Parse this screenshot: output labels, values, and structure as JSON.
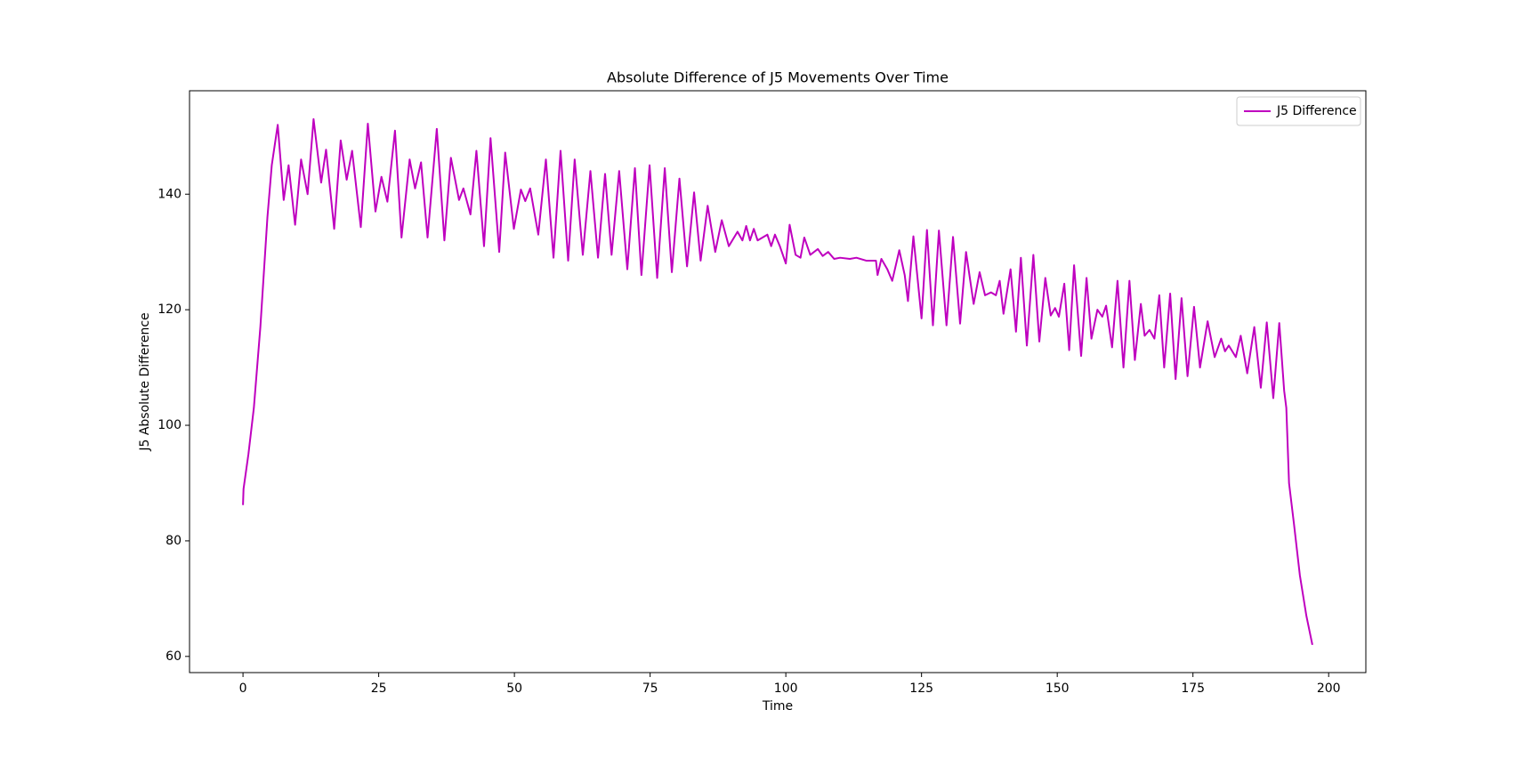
{
  "chart_data": {
    "type": "line",
    "title": "Absolute Difference of J5 Movements Over Time",
    "xlabel": "Time",
    "ylabel": "J5 Absolute Difference",
    "x": [
      0,
      0.1,
      1,
      2,
      3.2,
      4.5,
      5.3,
      6.4,
      7.5,
      8.4,
      9.6,
      10.7,
      11.9,
      13.0,
      14.4,
      15.3,
      16.8,
      18.0,
      19.1,
      20.1,
      21.7,
      23.0,
      24.4,
      25.5,
      26.6,
      28.0,
      29.2,
      30.7,
      31.7,
      32.8,
      34.0,
      35.7,
      37.1,
      38.3,
      39.8,
      40.6,
      41.9,
      43.0,
      44.4,
      45.6,
      47.2,
      48.3,
      49.9,
      51.2,
      52.0,
      52.9,
      54.4,
      55.8,
      57.2,
      58.5,
      59.9,
      61.1,
      62.6,
      64.0,
      65.4,
      66.7,
      67.9,
      69.3,
      70.8,
      72.2,
      73.4,
      74.9,
      76.3,
      77.7,
      79.0,
      80.4,
      81.8,
      83.1,
      84.3,
      85.6,
      87.0,
      88.2,
      89.5,
      91.1,
      92.0,
      92.7,
      93.4,
      94.1,
      94.8,
      96.6,
      97.3,
      98.0,
      98.9,
      100.0,
      100.7,
      101.8,
      102.7,
      103.4,
      104.5,
      105.9,
      106.8,
      107.8,
      108.9,
      110.0,
      111.8,
      113.0,
      114.8,
      116.6,
      116.9,
      117.6,
      118.7,
      119.6,
      120.9,
      121.9,
      122.5,
      123.5,
      125.0,
      126.0,
      127.1,
      128.2,
      129.6,
      130.8,
      132.1,
      133.2,
      134.6,
      135.7,
      136.7,
      137.8,
      138.7,
      139.4,
      140.1,
      141.4,
      142.4,
      143.3,
      144.4,
      145.6,
      146.7,
      147.8,
      148.8,
      149.6,
      150.3,
      151.3,
      152.2,
      153.1,
      154.4,
      155.4,
      156.3,
      157.4,
      158.3,
      159.0,
      160.1,
      161.1,
      162.2,
      163.3,
      164.3,
      165.4,
      166.1,
      167.0,
      167.9,
      168.8,
      169.7,
      170.8,
      171.8,
      172.9,
      174.0,
      175.2,
      176.3,
      177.7,
      179.0,
      180.2,
      180.9,
      181.6,
      182.9,
      183.8,
      185.0,
      186.3,
      187.5,
      188.6,
      189.8,
      190.9,
      191.8,
      192.2,
      192.7,
      193.6,
      194.7,
      195.9,
      197.0
    ],
    "series": [
      {
        "name": "J5 Difference",
        "color": "#bf00bf",
        "values": [
          86.2,
          89,
          95,
          103,
          117,
          136,
          145,
          152,
          139,
          145,
          134.7,
          146,
          140,
          153,
          142,
          147.7,
          134,
          149.3,
          142.5,
          147.5,
          134.3,
          152.2,
          137,
          143,
          138.7,
          151,
          132.5,
          146,
          141,
          145.5,
          132.5,
          151.3,
          132,
          146.3,
          139,
          141,
          136.5,
          147.5,
          131,
          149.7,
          130,
          147.2,
          134,
          140.8,
          138.8,
          141,
          133,
          146,
          129,
          147.5,
          128.5,
          146,
          129.5,
          144,
          129,
          143.5,
          129.5,
          144,
          127,
          144.5,
          126,
          145,
          125.5,
          144.5,
          126.5,
          142.7,
          127.5,
          140.3,
          128.5,
          138,
          130,
          135.5,
          131,
          133.5,
          132,
          134.5,
          132,
          134,
          132,
          133,
          131,
          133,
          131,
          128,
          134.7,
          129.5,
          129,
          132.5,
          129.5,
          130.5,
          129.3,
          130,
          128.8,
          129,
          128.8,
          129,
          128.5,
          128.5,
          126,
          128.8,
          127,
          125,
          130.3,
          126,
          121.5,
          132.7,
          118.5,
          133.8,
          117.3,
          133.7,
          117.3,
          132.6,
          117.6,
          130,
          121,
          126.5,
          122.5,
          123,
          122.5,
          125,
          119.3,
          127,
          116.2,
          129,
          113.8,
          129.5,
          114.5,
          125.5,
          119,
          120.3,
          118.8,
          124.5,
          113,
          127.7,
          112,
          125.5,
          115,
          120,
          118.8,
          120.7,
          113.5,
          125,
          110,
          125,
          111.3,
          121,
          115.5,
          116.5,
          115,
          122.5,
          110,
          122.8,
          108,
          122,
          108.5,
          120.5,
          110,
          118,
          111.8,
          115,
          112.8,
          113.8,
          111.8,
          115.5,
          109,
          117,
          106.5,
          117.8,
          104.7,
          117.7,
          106,
          103,
          90,
          83,
          74,
          67,
          62
        ]
      }
    ],
    "xlim": [
      -9.85,
      206.85
    ],
    "xticks": [
      0,
      25,
      50,
      75,
      100,
      125,
      150,
      175,
      200
    ],
    "ylim": [
      57.2,
      157.9
    ],
    "yticks": [
      60,
      80,
      100,
      120,
      140
    ],
    "legend": "upper right",
    "grid": false
  }
}
